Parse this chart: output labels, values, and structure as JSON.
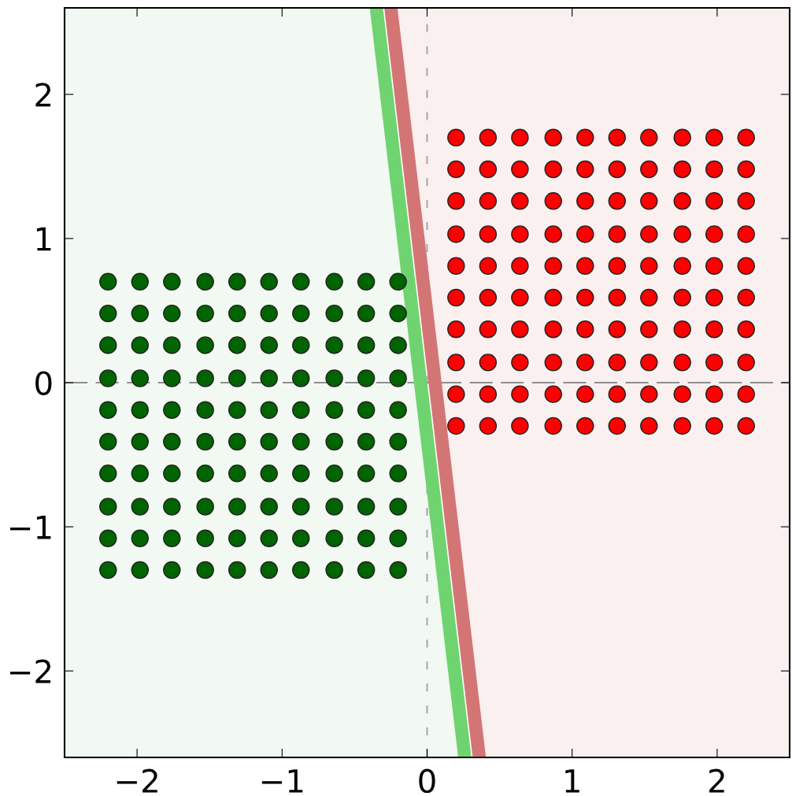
{
  "chart_data": {
    "type": "scatter",
    "xlim": [
      -2.5,
      2.5
    ],
    "ylim": [
      -2.6,
      2.6
    ],
    "xticks": [
      {
        "value": -2,
        "label": "−2"
      },
      {
        "value": -1,
        "label": "−1"
      },
      0,
      1,
      2
    ],
    "yticks": [
      {
        "value": -2,
        "label": "−2"
      },
      {
        "value": -1,
        "label": "−1"
      },
      0,
      1,
      2
    ],
    "grid": false,
    "legend": false,
    "marker": "circle",
    "ref_lines": [
      {
        "axis": "x",
        "value": 0,
        "color": "#a8a8a8",
        "line_style": "dashed"
      },
      {
        "axis": "y",
        "value": 0,
        "color": "#8f8f8f",
        "line_style": "dashed"
      }
    ],
    "series": [
      {
        "type": "line",
        "color": "#6fd46f",
        "marker": "none",
        "x": [
          -0.35,
          0.26
        ],
        "values": [
          2.6,
          -2.6
        ]
      },
      {
        "type": "line",
        "color": "#d47575",
        "marker": "none",
        "x": [
          -0.25,
          0.36
        ],
        "values": [
          2.6,
          -2.6
        ]
      },
      {
        "color": "#006400",
        "x": [
          -2.2,
          -1.98,
          -1.76,
          -1.53,
          -1.31,
          -1.09,
          -0.87,
          -0.64,
          -0.42,
          -0.2,
          -2.2,
          -1.98,
          -1.76,
          -1.53,
          -1.31,
          -1.09,
          -0.87,
          -0.64,
          -0.42,
          -0.2,
          -2.2,
          -1.98,
          -1.76,
          -1.53,
          -1.31,
          -1.09,
          -0.87,
          -0.64,
          -0.42,
          -0.2,
          -2.2,
          -1.98,
          -1.76,
          -1.53,
          -1.31,
          -1.09,
          -0.87,
          -0.64,
          -0.42,
          -0.2,
          -2.2,
          -1.98,
          -1.76,
          -1.53,
          -1.31,
          -1.09,
          -0.87,
          -0.64,
          -0.42,
          -0.2,
          -2.2,
          -1.98,
          -1.76,
          -1.53,
          -1.31,
          -1.09,
          -0.87,
          -0.64,
          -0.42,
          -0.2,
          -2.2,
          -1.98,
          -1.76,
          -1.53,
          -1.31,
          -1.09,
          -0.87,
          -0.64,
          -0.42,
          -0.2,
          -2.2,
          -1.98,
          -1.76,
          -1.53,
          -1.31,
          -1.09,
          -0.87,
          -0.64,
          -0.42,
          -0.2,
          -2.2,
          -1.98,
          -1.76,
          -1.53,
          -1.31,
          -1.09,
          -0.87,
          -0.64,
          -0.42,
          -0.2,
          -2.2,
          -1.98,
          -1.76,
          -1.53,
          -1.31,
          -1.09,
          -0.87,
          -0.64,
          -0.42,
          -0.2
        ],
        "values": [
          -1.3,
          -1.3,
          -1.3,
          -1.3,
          -1.3,
          -1.3,
          -1.3,
          -1.3,
          -1.3,
          -1.3,
          -1.08,
          -1.08,
          -1.08,
          -1.08,
          -1.08,
          -1.08,
          -1.08,
          -1.08,
          -1.08,
          -1.08,
          -0.86,
          -0.86,
          -0.86,
          -0.86,
          -0.86,
          -0.86,
          -0.86,
          -0.86,
          -0.86,
          -0.86,
          -0.63,
          -0.63,
          -0.63,
          -0.63,
          -0.63,
          -0.63,
          -0.63,
          -0.63,
          -0.63,
          -0.63,
          -0.41,
          -0.41,
          -0.41,
          -0.41,
          -0.41,
          -0.41,
          -0.41,
          -0.41,
          -0.41,
          -0.41,
          -0.19,
          -0.19,
          -0.19,
          -0.19,
          -0.19,
          -0.19,
          -0.19,
          -0.19,
          -0.19,
          -0.19,
          0.03,
          0.03,
          0.03,
          0.03,
          0.03,
          0.03,
          0.03,
          0.03,
          0.03,
          0.03,
          0.26,
          0.26,
          0.26,
          0.26,
          0.26,
          0.26,
          0.26,
          0.26,
          0.26,
          0.26,
          0.48,
          0.48,
          0.48,
          0.48,
          0.48,
          0.48,
          0.48,
          0.48,
          0.48,
          0.48,
          0.7,
          0.7,
          0.7,
          0.7,
          0.7,
          0.7,
          0.7,
          0.7,
          0.7,
          0.7
        ]
      },
      {
        "color": "#ff0000",
        "x": [
          0.2,
          0.42,
          0.64,
          0.87,
          1.09,
          1.31,
          1.53,
          1.76,
          1.98,
          2.2,
          0.2,
          0.42,
          0.64,
          0.87,
          1.09,
          1.31,
          1.53,
          1.76,
          1.98,
          2.2,
          0.2,
          0.42,
          0.64,
          0.87,
          1.09,
          1.31,
          1.53,
          1.76,
          1.98,
          2.2,
          0.2,
          0.42,
          0.64,
          0.87,
          1.09,
          1.31,
          1.53,
          1.76,
          1.98,
          2.2,
          0.2,
          0.42,
          0.64,
          0.87,
          1.09,
          1.31,
          1.53,
          1.76,
          1.98,
          2.2,
          0.2,
          0.42,
          0.64,
          0.87,
          1.09,
          1.31,
          1.53,
          1.76,
          1.98,
          2.2,
          0.2,
          0.42,
          0.64,
          0.87,
          1.09,
          1.31,
          1.53,
          1.76,
          1.98,
          2.2,
          0.2,
          0.42,
          0.64,
          0.87,
          1.09,
          1.31,
          1.53,
          1.76,
          1.98,
          2.2,
          0.2,
          0.42,
          0.64,
          0.87,
          1.09,
          1.31,
          1.53,
          1.76,
          1.98,
          2.2,
          0.2,
          0.42,
          0.64,
          0.87,
          1.09,
          1.31,
          1.53,
          1.76,
          1.98,
          2.2
        ],
        "values": [
          -0.3,
          -0.3,
          -0.3,
          -0.3,
          -0.3,
          -0.3,
          -0.3,
          -0.3,
          -0.3,
          -0.3,
          -0.08,
          -0.08,
          -0.08,
          -0.08,
          -0.08,
          -0.08,
          -0.08,
          -0.08,
          -0.08,
          -0.08,
          0.14,
          0.14,
          0.14,
          0.14,
          0.14,
          0.14,
          0.14,
          0.14,
          0.14,
          0.14,
          0.37,
          0.37,
          0.37,
          0.37,
          0.37,
          0.37,
          0.37,
          0.37,
          0.37,
          0.37,
          0.59,
          0.59,
          0.59,
          0.59,
          0.59,
          0.59,
          0.59,
          0.59,
          0.59,
          0.59,
          0.81,
          0.81,
          0.81,
          0.81,
          0.81,
          0.81,
          0.81,
          0.81,
          0.81,
          0.81,
          1.03,
          1.03,
          1.03,
          1.03,
          1.03,
          1.03,
          1.03,
          1.03,
          1.03,
          1.03,
          1.26,
          1.26,
          1.26,
          1.26,
          1.26,
          1.26,
          1.26,
          1.26,
          1.26,
          1.26,
          1.48,
          1.48,
          1.48,
          1.48,
          1.48,
          1.48,
          1.48,
          1.48,
          1.48,
          1.48,
          1.7,
          1.7,
          1.7,
          1.7,
          1.7,
          1.7,
          1.7,
          1.7,
          1.7,
          1.7
        ]
      }
    ]
  }
}
